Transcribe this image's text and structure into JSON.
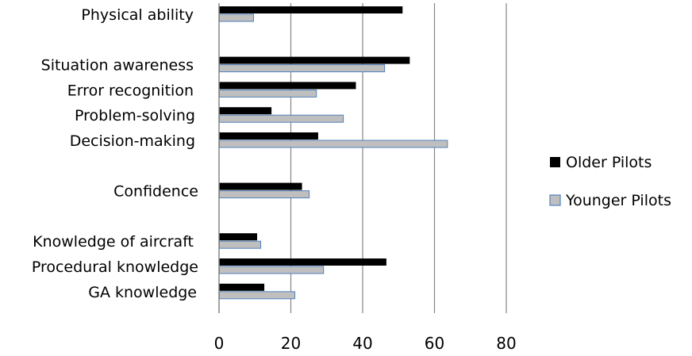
{
  "chart_data": {
    "type": "bar",
    "orientation": "horizontal",
    "title": "",
    "xlabel": "",
    "ylabel": "",
    "xlim": [
      0,
      80
    ],
    "xticks": [
      0,
      20,
      40,
      60,
      80
    ],
    "grid": "vertical",
    "legend_position": "right",
    "categories": [
      "Physical ability",
      "Situation awareness",
      "Error recognition",
      "Problem-solving",
      "Decision-making",
      "Confidence",
      "Knowledge of aircraft",
      "Procedural knowledge",
      "GA  knowledge"
    ],
    "series": [
      {
        "name": "Older Pilots",
        "color": "#000000",
        "values": [
          51,
          53,
          38,
          14.5,
          27.5,
          23,
          10.5,
          46.5,
          12.5
        ]
      },
      {
        "name": "Younger Pilots",
        "color": "#bfbfbf",
        "border": "#4f81bd",
        "values": [
          9.5,
          46,
          27,
          34.5,
          63.5,
          25,
          11.5,
          29,
          21
        ]
      }
    ]
  }
}
